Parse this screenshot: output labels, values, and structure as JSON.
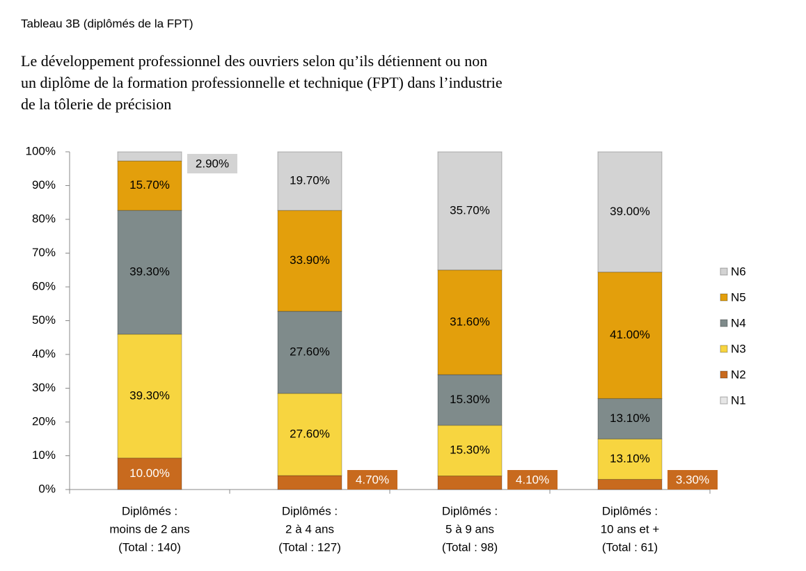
{
  "chart_data": {
    "type": "percent-stacked-bar",
    "subtitle": "Tableau 3B (diplômés de la FPT)",
    "title": [
      "Le développement professionnel des ouvriers selon qu’ils détiennent ou non",
      "un diplôme de la formation professionnelle et technique (FPT) dans l’industrie",
      "de la tôlerie de précision"
    ],
    "categories": [
      [
        "Diplômés :",
        "moins de 2 ans",
        "(Total : 140)"
      ],
      [
        "Diplômés :",
        "2 à 4 ans",
        "(Total : 127)"
      ],
      [
        "Diplômés :",
        "5 à 9 ans",
        "(Total : 98)"
      ],
      [
        "Diplômés :",
        "10 ans et +",
        "(Total : 61)"
      ]
    ],
    "series": [
      {
        "name": "N1",
        "color": "#e6e6e6",
        "values": [
          null,
          null,
          null,
          null
        ]
      },
      {
        "name": "N2",
        "color": "#c86a1e",
        "values": [
          10.0,
          4.7,
          4.1,
          3.3
        ],
        "value_labels": [
          "10.00%",
          "4.70%",
          "4.10%",
          "3.30%"
        ]
      },
      {
        "name": "N3",
        "color": "#f7d540",
        "values": [
          39.3,
          27.6,
          15.3,
          13.1
        ],
        "value_labels": [
          "39.30%",
          "27.60%",
          "15.30%",
          "13.10%"
        ]
      },
      {
        "name": "N4",
        "color": "#7f8b8b",
        "values": [
          39.3,
          27.6,
          15.3,
          13.1
        ],
        "value_labels": [
          "39.30%",
          "27.60%",
          "15.30%",
          "13.10%"
        ]
      },
      {
        "name": "N5",
        "color": "#e39f0c",
        "values": [
          15.7,
          33.9,
          31.6,
          41.0
        ],
        "value_labels": [
          "15.70%",
          "33.90%",
          "31.60%",
          "41.00%"
        ]
      },
      {
        "name": "N6",
        "color": "#d3d3d3",
        "values": [
          2.9,
          19.7,
          35.7,
          39.0
        ],
        "value_labels": [
          "2.90%",
          "19.70%",
          "35.70%",
          "39.00%"
        ]
      }
    ],
    "ylim": [
      0,
      100
    ],
    "yticks": [
      {
        "value": 0,
        "label": "0%"
      },
      {
        "value": 10,
        "label": "10%"
      },
      {
        "value": 20,
        "label": "20%"
      },
      {
        "value": 30,
        "label": "30%"
      },
      {
        "value": 40,
        "label": "40%"
      },
      {
        "value": 50,
        "label": "50%"
      },
      {
        "value": 60,
        "label": "60%"
      },
      {
        "value": 70,
        "label": "70%"
      },
      {
        "value": 80,
        "label": "80%"
      },
      {
        "value": 90,
        "label": "90%"
      },
      {
        "value": 100,
        "label": "100%"
      }
    ],
    "legend": "right"
  }
}
